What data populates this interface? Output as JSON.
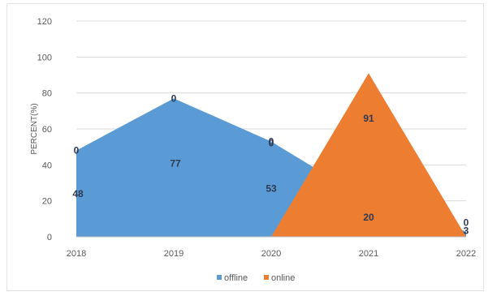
{
  "chart_data": {
    "type": "area",
    "categories": [
      "2018",
      "2019",
      "2020",
      "2021",
      "2022"
    ],
    "series": [
      {
        "name": "offline",
        "color": "#5b9bd5",
        "values": [
          48,
          77,
          53,
          20,
          3
        ],
        "labels": [
          "48",
          "77",
          "53",
          "20",
          "3"
        ],
        "marker_labels": [
          "0",
          "0",
          "0",
          "",
          ""
        ]
      },
      {
        "name": "online",
        "color": "#ed7d31",
        "values": [
          null,
          null,
          0,
          91,
          0
        ],
        "labels": [
          "",
          "",
          "",
          "91",
          "0"
        ],
        "marker_labels": [
          "",
          "",
          "0",
          "",
          ""
        ]
      }
    ],
    "ylabel": "PERCENT(%)",
    "xlabel": "",
    "ylim": [
      0,
      120
    ],
    "yticks": [
      0,
      20,
      40,
      60,
      80,
      100,
      120
    ],
    "grid": true,
    "legend": "bottom"
  }
}
